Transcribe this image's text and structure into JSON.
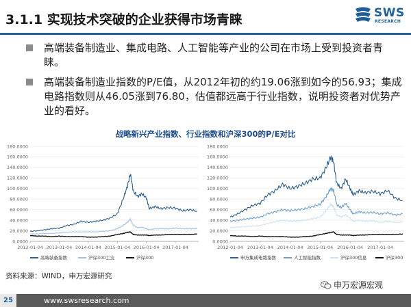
{
  "header": {
    "title": "3.1.1 实现技术突破的企业获得市场青睐",
    "logo_text": "SWS",
    "logo_subtext": "RESEARCH"
  },
  "bullets": [
    "高端装备制造业、集成电路、人工智能等产业的公司在市场上受到投资者青睐。",
    "高端装备制造业指数的P/E值，从2012年初的约19.06涨到如今的56.93；集成电路指数则从46.05涨到76.80，估值都远高于行业指数，说明投资者对优势产业的看好。"
  ],
  "chart_title": "战略新兴产业指数、行业指数和沪深300的P/E对比",
  "source": "资料来源：WIND，申万宏源研究",
  "wechat_label": "申万宏源宏观",
  "footer": {
    "page_number": "25",
    "site": "www.swsresearch.com"
  },
  "colors": {
    "brand_blue": "#1f5f9a",
    "series_dark_blue": "#2e5f8f",
    "series_light_blue": "#9fc3e3",
    "series_black": "#111111"
  },
  "chart_data": [
    {
      "type": "line",
      "ylim": [
        0,
        180
      ],
      "y_ticks": [
        "0.0000",
        "20.0000",
        "40.0000",
        "60.0000",
        "80.0000",
        "100.0000",
        "120.0000",
        "140.0000",
        "160.0000",
        "180.0000"
      ],
      "x_ticks": [
        "2012-01-04",
        "2013-01-04",
        "2014-01-04",
        "2015-01-04",
        "2016-01-04",
        "2017-01-04"
      ],
      "x": [
        2012.0,
        2012.25,
        2012.5,
        2012.75,
        2013.0,
        2013.25,
        2013.5,
        2013.75,
        2014.0,
        2014.25,
        2014.5,
        2014.75,
        2015.0,
        2015.2,
        2015.35,
        2015.45,
        2015.55,
        2015.7,
        2015.85,
        2016.0,
        2016.1,
        2016.3,
        2016.5,
        2016.75,
        2017.0,
        2017.25,
        2017.5,
        2017.75
      ],
      "x_range": [
        2012.0,
        2017.8
      ],
      "series": [
        {
          "name": "高端装备指数",
          "color": "#2e5f8f",
          "values": [
            19,
            20,
            22,
            24,
            25,
            30,
            32,
            38,
            36,
            38,
            40,
            44,
            52,
            80,
            105,
            128,
            95,
            85,
            90,
            82,
            62,
            66,
            62,
            64,
            63,
            58,
            60,
            57
          ]
        },
        {
          "name": "沪深300工业",
          "color": "#9fc3e3",
          "values": [
            14,
            14,
            15,
            15,
            16,
            17,
            18,
            18,
            18,
            18,
            19,
            20,
            24,
            30,
            36,
            42,
            30,
            26,
            27,
            24,
            22,
            24,
            24,
            24,
            25,
            24,
            24,
            24
          ]
        },
        {
          "name": "沪深300",
          "color": "#111111",
          "values": [
            11,
            10,
            10,
            9,
            10,
            9,
            9,
            9,
            8,
            8,
            9,
            10,
            13,
            15,
            17,
            18,
            13,
            12,
            12,
            12,
            11,
            12,
            12,
            13,
            13,
            13,
            13,
            14
          ]
        }
      ]
    },
    {
      "type": "line",
      "ylim": [
        0,
        180
      ],
      "y_ticks": [
        "0.0000",
        "20.0000",
        "40.0000",
        "60.0000",
        "80.0000",
        "100.0000",
        "120.0000",
        "140.0000",
        "160.0000",
        "180.0000"
      ],
      "x_ticks": [
        "2012-01-04",
        "2013-01-04",
        "2014-01-04",
        "2015-01-04",
        "2016-01-04",
        "2017-01-04"
      ],
      "x": [
        2012.0,
        2012.25,
        2012.5,
        2012.75,
        2013.0,
        2013.25,
        2013.5,
        2013.75,
        2014.0,
        2014.25,
        2014.5,
        2014.75,
        2015.0,
        2015.2,
        2015.35,
        2015.45,
        2015.55,
        2015.7,
        2015.85,
        2016.0,
        2016.1,
        2016.3,
        2016.5,
        2016.75,
        2017.0,
        2017.25,
        2017.5,
        2017.75
      ],
      "x_range": [
        2012.0,
        2017.8
      ],
      "series": [
        {
          "name": "申万集成电路指数",
          "color": "#2e5f8f",
          "values": [
            46,
            52,
            60,
            68,
            72,
            88,
            96,
            108,
            100,
            104,
            110,
            118,
            120,
            140,
            160,
            150,
            110,
            100,
            118,
            100,
            88,
            96,
            92,
            95,
            90,
            96,
            82,
            77
          ]
        },
        {
          "name": "人工智能指数",
          "color": "#6f9fcb",
          "values": [
            38,
            40,
            42,
            44,
            46,
            52,
            56,
            60,
            58,
            60,
            62,
            66,
            70,
            85,
            100,
            96,
            70,
            64,
            72,
            60,
            52,
            56,
            54,
            55,
            52,
            54,
            50,
            52
          ]
        },
        {
          "name": "沪深300信息",
          "color": "#cfe0f1",
          "values": [
            26,
            27,
            28,
            29,
            30,
            34,
            37,
            40,
            38,
            39,
            40,
            43,
            46,
            58,
            70,
            66,
            50,
            46,
            50,
            44,
            38,
            40,
            38,
            39,
            36,
            38,
            36,
            37
          ]
        },
        {
          "name": "沪深300",
          "color": "#111111",
          "values": [
            11,
            10,
            10,
            9,
            10,
            9,
            9,
            9,
            8,
            8,
            9,
            10,
            13,
            15,
            17,
            18,
            13,
            12,
            12,
            12,
            11,
            12,
            12,
            13,
            13,
            13,
            13,
            14
          ]
        }
      ]
    }
  ]
}
